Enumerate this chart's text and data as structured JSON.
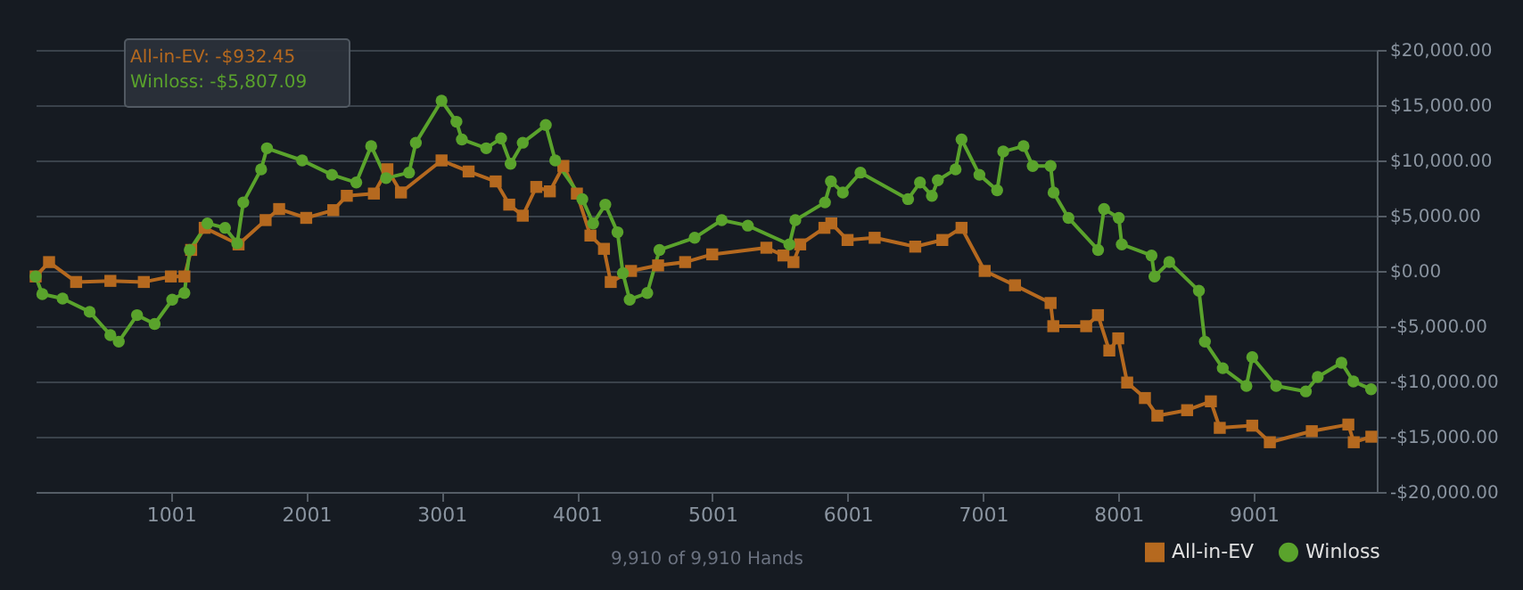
{
  "chart_data": {
    "type": "line",
    "xlabel": "9,910 of 9,910 Hands",
    "xlim": [
      1,
      9910
    ],
    "xticks": [
      1001,
      2001,
      3001,
      4001,
      5001,
      6001,
      7001,
      8001,
      9001
    ],
    "ylim": [
      -20000,
      20000
    ],
    "yticks": [
      {
        "value": -20000,
        "label": "-$20,000.00"
      },
      {
        "value": -15000,
        "label": "-$15,000.00"
      },
      {
        "value": -10000,
        "label": "-$10,000.00"
      },
      {
        "value": -5000,
        "label": "-$5,000.00"
      },
      {
        "value": 0,
        "label": "$0.00"
      },
      {
        "value": 5000,
        "label": "$5,000.00"
      },
      {
        "value": 10000,
        "label": "$10,000.00"
      },
      {
        "value": 15000,
        "label": "$15,000.00"
      },
      {
        "value": 20000,
        "label": "$20,000.00"
      }
    ],
    "grid": "y",
    "legend": "bottom right",
    "annotations": [
      "All-in-EV: -$932.45",
      "Winloss: -$5,807.09"
    ],
    "series": [
      {
        "name": "All-in-EV",
        "color": "#b5691f",
        "marker": "square",
        "x": [
          1,
          100,
          300,
          553,
          800,
          1000,
          1100,
          1150,
          1250,
          1500,
          1700,
          1800,
          2000,
          2200,
          2300,
          2500,
          2600,
          2700,
          3000,
          3200,
          3400,
          3500,
          3600,
          3700,
          3800,
          3900,
          4000,
          4100,
          4200,
          4250,
          4400,
          4600,
          4800,
          5000,
          5400,
          5526,
          5600,
          5650,
          5829,
          5880,
          6000,
          6200,
          6500,
          6700,
          6842,
          7013,
          7237,
          7500,
          7520,
          7763,
          7850,
          7934,
          8000,
          8066,
          8197,
          8289,
          8509,
          8684,
          8750,
          8990,
          9120,
          9430,
          9700,
          9740,
          9870
        ],
        "values": [
          -500,
          800,
          -1000,
          -900,
          -1000,
          -500,
          -500,
          1900,
          3900,
          2400,
          4600,
          5600,
          4800,
          5500,
          6800,
          7000,
          9200,
          7100,
          10000,
          9000,
          8100,
          6000,
          5000,
          7600,
          7200,
          9500,
          7000,
          3200,
          2000,
          -1000,
          0,
          500,
          800,
          1500,
          2100,
          1400,
          800,
          2400,
          3900,
          4300,
          2800,
          3000,
          2200,
          2800,
          3900,
          0,
          -1300,
          -2900,
          -5000,
          -5000,
          -4000,
          -7200,
          -6100,
          -10100,
          -11500,
          -13100,
          -12600,
          -11800,
          -14200,
          -14000,
          -15500,
          -14500,
          -13900,
          -15500,
          -15000
        ]
      },
      {
        "name": "Winloss",
        "color": "#5aa32c",
        "marker": "circle",
        "x": [
          1,
          50,
          200,
          400,
          553,
          615,
          750,
          880,
          1010,
          1100,
          1140,
          1270,
          1400,
          1490,
          1535,
          1667,
          1710,
          1970,
          2190,
          2370,
          2480,
          2590,
          2760,
          2810,
          3000,
          3110,
          3150,
          3330,
          3440,
          3510,
          3600,
          3770,
          3840,
          4040,
          4120,
          4210,
          4300,
          4340,
          4390,
          4520,
          4610,
          4870,
          5070,
          5263,
          5570,
          5614,
          5833,
          5877,
          5965,
          6095,
          6447,
          6535,
          6623,
          6667,
          6798,
          6842,
          6974,
          7105,
          7150,
          7300,
          7368,
          7500,
          7522,
          7632,
          7851,
          7895,
          8004,
          8026,
          8246,
          8268,
          8377,
          8596,
          8640,
          8772,
          8947,
          8990,
          9167,
          9386,
          9474,
          9649,
          9737,
          9868
        ],
        "values": [
          -500,
          -2100,
          -2500,
          -3700,
          -5800,
          -6400,
          -4000,
          -4800,
          -2600,
          -2000,
          1900,
          4300,
          3900,
          2500,
          6200,
          9200,
          11100,
          10000,
          8700,
          8000,
          11300,
          8400,
          8900,
          11600,
          15400,
          13500,
          11900,
          11100,
          12000,
          9700,
          11600,
          13200,
          10000,
          6500,
          4300,
          6000,
          3500,
          -200,
          -2600,
          -2000,
          1900,
          3000,
          4600,
          4100,
          2400,
          4600,
          6200,
          8100,
          7100,
          8900,
          6500,
          8000,
          6800,
          8200,
          9200,
          11900,
          8700,
          7300,
          10800,
          11300,
          9500,
          9500,
          7100,
          4800,
          1900,
          5600,
          4800,
          2400,
          1400,
          -500,
          800,
          -1800,
          -6400,
          -8800,
          -10400,
          -7800,
          -10400,
          -10900,
          -9600,
          -8300,
          -10000,
          -10700
        ]
      }
    ]
  }
}
